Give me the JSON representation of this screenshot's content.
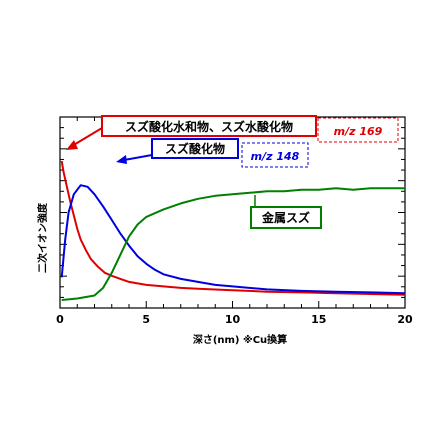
{
  "chart_data": {
    "type": "line",
    "xlabel": "深さ(nm) ※Cu換算",
    "ylabel": "二次イオン強度",
    "xlim": [
      0,
      20
    ],
    "xticks": [
      0,
      5,
      10,
      15,
      20
    ],
    "grid": false,
    "legend": "none",
    "series": [
      {
        "color": "#e00000",
        "points": [
          [
            0.1,
            0.92
          ],
          [
            0.2,
            0.85
          ],
          [
            0.4,
            0.75
          ],
          [
            0.6,
            0.65
          ],
          [
            0.8,
            0.56
          ],
          [
            1.0,
            0.47
          ],
          [
            1.2,
            0.4
          ],
          [
            1.5,
            0.33
          ],
          [
            1.8,
            0.27
          ],
          [
            2.2,
            0.22
          ],
          [
            2.6,
            0.18
          ],
          [
            3.0,
            0.16
          ],
          [
            3.5,
            0.14
          ],
          [
            4.0,
            0.12
          ],
          [
            4.5,
            0.11
          ],
          [
            5.0,
            0.1
          ],
          [
            6.0,
            0.09
          ],
          [
            7.0,
            0.08
          ],
          [
            8.0,
            0.075
          ],
          [
            10.0,
            0.065
          ],
          [
            12.0,
            0.055
          ],
          [
            14.0,
            0.05
          ],
          [
            16.0,
            0.045
          ],
          [
            18.0,
            0.04
          ],
          [
            20.0,
            0.035
          ]
        ]
      },
      {
        "color": "#0000e0",
        "points": [
          [
            0.1,
            0.15
          ],
          [
            0.3,
            0.4
          ],
          [
            0.5,
            0.58
          ],
          [
            0.8,
            0.7
          ],
          [
            1.2,
            0.76
          ],
          [
            1.6,
            0.75
          ],
          [
            2.0,
            0.7
          ],
          [
            2.5,
            0.62
          ],
          [
            3.0,
            0.53
          ],
          [
            3.5,
            0.44
          ],
          [
            4.0,
            0.36
          ],
          [
            4.5,
            0.29
          ],
          [
            5.0,
            0.24
          ],
          [
            5.5,
            0.2
          ],
          [
            6.0,
            0.17
          ],
          [
            7.0,
            0.14
          ],
          [
            8.0,
            0.12
          ],
          [
            9.0,
            0.1
          ],
          [
            10.0,
            0.09
          ],
          [
            12.0,
            0.07
          ],
          [
            14.0,
            0.06
          ],
          [
            16.0,
            0.055
          ],
          [
            18.0,
            0.05
          ],
          [
            20.0,
            0.045
          ]
        ]
      },
      {
        "color": "#008000",
        "points": [
          [
            0.1,
            0.0
          ],
          [
            1.0,
            0.01
          ],
          [
            2.0,
            0.03
          ],
          [
            2.5,
            0.08
          ],
          [
            3.0,
            0.18
          ],
          [
            3.5,
            0.3
          ],
          [
            4.0,
            0.42
          ],
          [
            4.5,
            0.5
          ],
          [
            5.0,
            0.55
          ],
          [
            6.0,
            0.6
          ],
          [
            7.0,
            0.64
          ],
          [
            8.0,
            0.67
          ],
          [
            9.0,
            0.69
          ],
          [
            10.0,
            0.7
          ],
          [
            11.0,
            0.71
          ],
          [
            12.0,
            0.72
          ],
          [
            13.0,
            0.72
          ],
          [
            14.0,
            0.73
          ],
          [
            15.0,
            0.73
          ],
          [
            16.0,
            0.74
          ],
          [
            17.0,
            0.73
          ],
          [
            18.0,
            0.74
          ],
          [
            19.0,
            0.74
          ],
          [
            20.0,
            0.74
          ]
        ]
      }
    ],
    "annotations": [
      {
        "text": "スズ酸化水和物、スズ水酸化物",
        "color": "#e00000"
      },
      {
        "text": "m/z 169",
        "color": "#e00000"
      },
      {
        "text": "スズ酸化物",
        "color": "#0000e0"
      },
      {
        "text": "m/z 148",
        "color": "#0000e0"
      },
      {
        "text": "金属スズ",
        "color": "#008000"
      }
    ]
  }
}
